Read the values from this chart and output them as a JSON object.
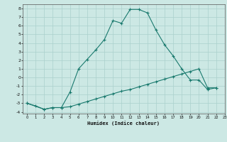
{
  "xlabel": "Humidex (Indice chaleur)",
  "x_values": [
    0,
    1,
    2,
    3,
    4,
    5,
    6,
    7,
    8,
    9,
    10,
    11,
    12,
    13,
    14,
    15,
    16,
    17,
    18,
    19,
    20,
    21,
    22,
    23
  ],
  "line1_y": [
    -3.0,
    -3.3,
    -3.7,
    -3.5,
    -3.5,
    -1.7,
    1.0,
    2.1,
    3.2,
    4.4,
    6.6,
    6.3,
    7.9,
    7.9,
    7.5,
    5.5,
    3.8,
    2.5,
    1.0,
    -0.3,
    -0.3,
    -1.4,
    -1.2,
    null
  ],
  "line2_y": [
    -3.0,
    null,
    -3.7,
    -3.5,
    -3.5,
    -3.4,
    -3.1,
    -2.8,
    -2.5,
    -2.2,
    -1.9,
    -1.6,
    -1.4,
    -1.1,
    -0.8,
    -0.5,
    -0.2,
    0.1,
    0.4,
    0.7,
    1.0,
    -1.2,
    -1.2,
    null
  ],
  "xlim": [
    -0.5,
    23
  ],
  "ylim": [
    -4.2,
    8.5
  ],
  "yticks": [
    -4,
    -3,
    -2,
    -1,
    0,
    1,
    2,
    3,
    4,
    5,
    6,
    7,
    8
  ],
  "xticks": [
    0,
    1,
    2,
    3,
    4,
    5,
    6,
    7,
    8,
    9,
    10,
    11,
    12,
    13,
    14,
    15,
    16,
    17,
    18,
    19,
    20,
    21,
    22,
    23
  ],
  "line_color": "#1a7a6e",
  "bg_color": "#cce8e4",
  "grid_color": "#aad0cc"
}
